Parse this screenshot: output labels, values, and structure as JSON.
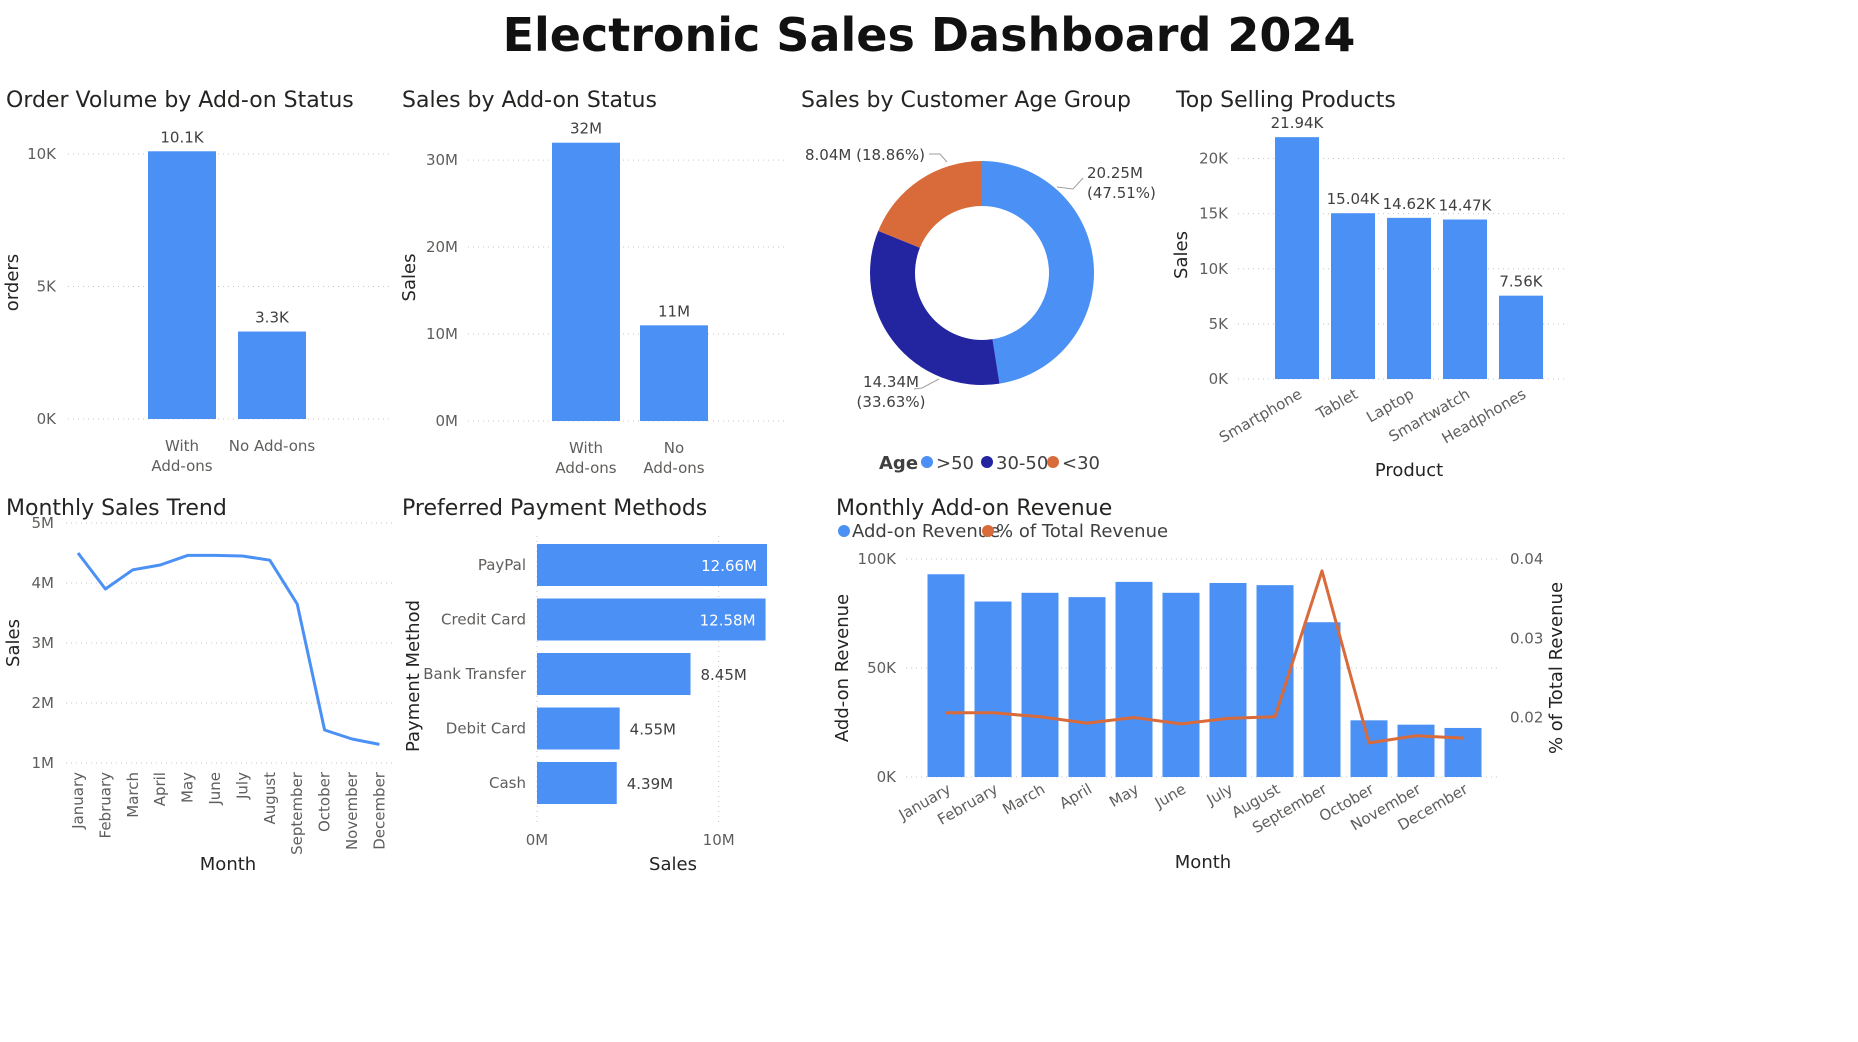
{
  "dashboard_title": "Electronic Sales Dashboard 2024",
  "colors": {
    "blue": "#4a90f5",
    "navy": "#2224a0",
    "orange": "#d96b3b"
  },
  "chart_data": [
    {
      "id": "orders",
      "type": "bar",
      "title": "Order Volume by Add-on Status",
      "ylabel": "orders",
      "categories": [
        [
          "With",
          "Add-ons"
        ],
        [
          "No Add-ons"
        ]
      ],
      "values": [
        10100,
        3300
      ],
      "data_labels": [
        "10.1K",
        "3.3K"
      ],
      "yticks": [
        "0K",
        "5K",
        "10K"
      ],
      "ytick_values": [
        0,
        5000,
        10000
      ],
      "ylim": [
        0,
        10300
      ]
    },
    {
      "id": "sales_addon",
      "type": "bar",
      "title": "Sales by Add-on Status",
      "ylabel": "Sales",
      "categories": [
        [
          "With",
          "Add-ons"
        ],
        [
          "No",
          "Add-ons"
        ]
      ],
      "values": [
        32000000,
        11000000
      ],
      "data_labels": [
        "32M",
        "11M"
      ],
      "yticks": [
        "0M",
        "10M",
        "20M",
        "30M"
      ],
      "ytick_values": [
        0,
        10000000,
        20000000,
        30000000
      ],
      "ylim": [
        0,
        33000000
      ]
    },
    {
      "id": "age",
      "type": "pie",
      "title": "Sales by Customer Age Group",
      "legend_title": "Age",
      "slices": [
        {
          "label": ">50",
          "value": 20.25,
          "share": 47.51,
          "data_label": [
            "20.25M",
            "(47.51%)"
          ]
        },
        {
          "label": "30-50",
          "value": 14.34,
          "share": 33.63,
          "data_label": [
            "14.34M",
            "(33.63%)"
          ]
        },
        {
          "label": "<30",
          "value": 8.04,
          "share": 18.86,
          "data_label": [
            "8.04M (18.86%)"
          ]
        }
      ]
    },
    {
      "id": "products",
      "type": "bar",
      "title": "Top Selling Products",
      "xlabel": "Product",
      "ylabel": "Sales",
      "categories": [
        "Smartphone",
        "Tablet",
        "Laptop",
        "Smartwatch",
        "Headphones"
      ],
      "values": [
        21940,
        15040,
        14620,
        14470,
        7560
      ],
      "data_labels": [
        "21.94K",
        "15.04K",
        "14.62K",
        "14.47K",
        "7.56K"
      ],
      "yticks": [
        "0K",
        "5K",
        "10K",
        "15K",
        "20K"
      ],
      "ytick_values": [
        0,
        5000,
        10000,
        15000,
        20000
      ],
      "ylim": [
        0,
        22500
      ]
    },
    {
      "id": "trend",
      "type": "line",
      "title": "Monthly Sales Trend",
      "xlabel": "Month",
      "ylabel": "Sales",
      "categories": [
        "January",
        "February",
        "March",
        "April",
        "May",
        "June",
        "July",
        "August",
        "September",
        "October",
        "November",
        "December"
      ],
      "values": [
        4500000,
        3900000,
        4220000,
        4300000,
        4460000,
        4460000,
        4450000,
        4380000,
        3650000,
        1550000,
        1400000,
        1310000
      ],
      "yticks": [
        "1M",
        "2M",
        "3M",
        "4M",
        "5M"
      ],
      "ytick_values": [
        1000000,
        2000000,
        3000000,
        4000000,
        5000000
      ],
      "ylim": [
        1000000,
        5000000
      ]
    },
    {
      "id": "payment",
      "type": "bar",
      "orientation": "horizontal",
      "title": "Preferred Payment Methods",
      "xlabel": "Sales",
      "ylabel": "Payment Method",
      "categories": [
        "PayPal",
        "Credit Card",
        "Bank Transfer",
        "Debit Card",
        "Cash"
      ],
      "values": [
        12660000,
        12580000,
        8450000,
        4550000,
        4390000
      ],
      "data_labels": [
        "12.66M",
        "12.58M",
        "8.45M",
        "4.55M",
        "4.39M"
      ],
      "xticks": [
        "0M",
        "10M"
      ],
      "xtick_values": [
        0,
        10000000
      ],
      "xlim": [
        0,
        12660000
      ]
    },
    {
      "id": "addon_rev",
      "type": "bar",
      "title": "Monthly Add-on Revenue",
      "xlabel": "Month",
      "ylabel": "Add-on Revenue",
      "y2label": "% of Total Revenue",
      "categories": [
        "January",
        "February",
        "March",
        "April",
        "May",
        "June",
        "July",
        "August",
        "September",
        "October",
        "November",
        "December"
      ],
      "series": [
        {
          "name": "Add-on Revenue",
          "type": "bar",
          "values": [
            93000,
            80500,
            84500,
            82500,
            89500,
            84500,
            89000,
            88000,
            71000,
            26000,
            24000,
            22500
          ]
        },
        {
          "name": "% of Total Revenue",
          "type": "line",
          "axis": "right",
          "values": [
            0.0206,
            0.0206,
            0.0201,
            0.0193,
            0.02,
            0.0192,
            0.0199,
            0.0201,
            0.0385,
            0.0168,
            0.0177,
            0.0174
          ]
        }
      ],
      "yticks": [
        "0K",
        "50K",
        "100K"
      ],
      "ytick_values": [
        0,
        50000,
        100000
      ],
      "ylim": [
        0,
        100000
      ],
      "y2ticks": [
        "0.02",
        "0.03",
        "0.04"
      ],
      "y2tick_values": [
        0.02,
        0.03,
        0.04
      ],
      "y2lim": [
        0.0125,
        0.04
      ]
    }
  ]
}
